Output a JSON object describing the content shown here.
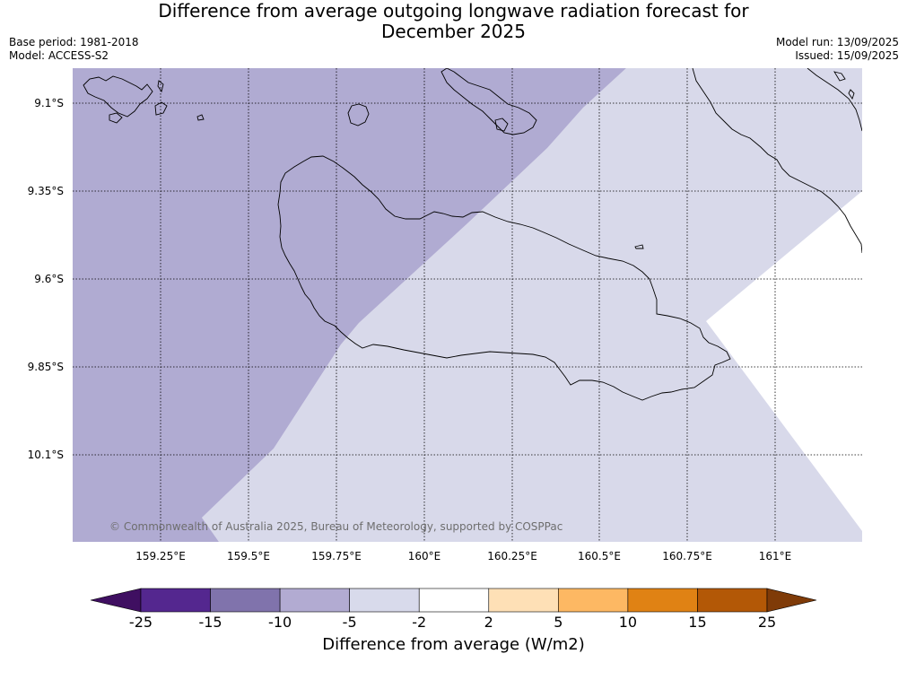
{
  "title_line1": "Difference from average outgoing longwave radiation forecast for",
  "title_line2": "December 2025",
  "meta": {
    "base_period": "Base period: 1981-2018",
    "model": "Model: ACCESS-S2",
    "model_run": "Model run: 13/09/2025",
    "issued": "Issued: 15/09/2025"
  },
  "copyright": "© Commonwealth of Australia 2025, Bureau of Meteorology, supported by COSPPac",
  "lon_labels": [
    "159.25°E",
    "159.5°E",
    "159.75°E",
    "160°E",
    "160.25°E",
    "160.5°E",
    "160.75°E",
    "161°E"
  ],
  "lat_labels": [
    "9.1°S",
    "9.35°S",
    "9.6°S",
    "9.85°S",
    "10.1°S"
  ],
  "colorbar": {
    "ticks": [
      "-25",
      "-15",
      "-10",
      "-5",
      "-2",
      "2",
      "5",
      "10",
      "15",
      "25"
    ],
    "label": "Difference from average (W/m2)",
    "colors": [
      "#3f0f61",
      "#54278f",
      "#8073ac",
      "#b2abd2",
      "#d8daeb",
      "#ffffff",
      "#fee0b6",
      "#fdb863",
      "#e08214",
      "#b35806",
      "#7f3b08"
    ]
  },
  "fill_colors": {
    "darker_band": "#b0abd2",
    "lighter_band": "#d8d9ea"
  }
}
